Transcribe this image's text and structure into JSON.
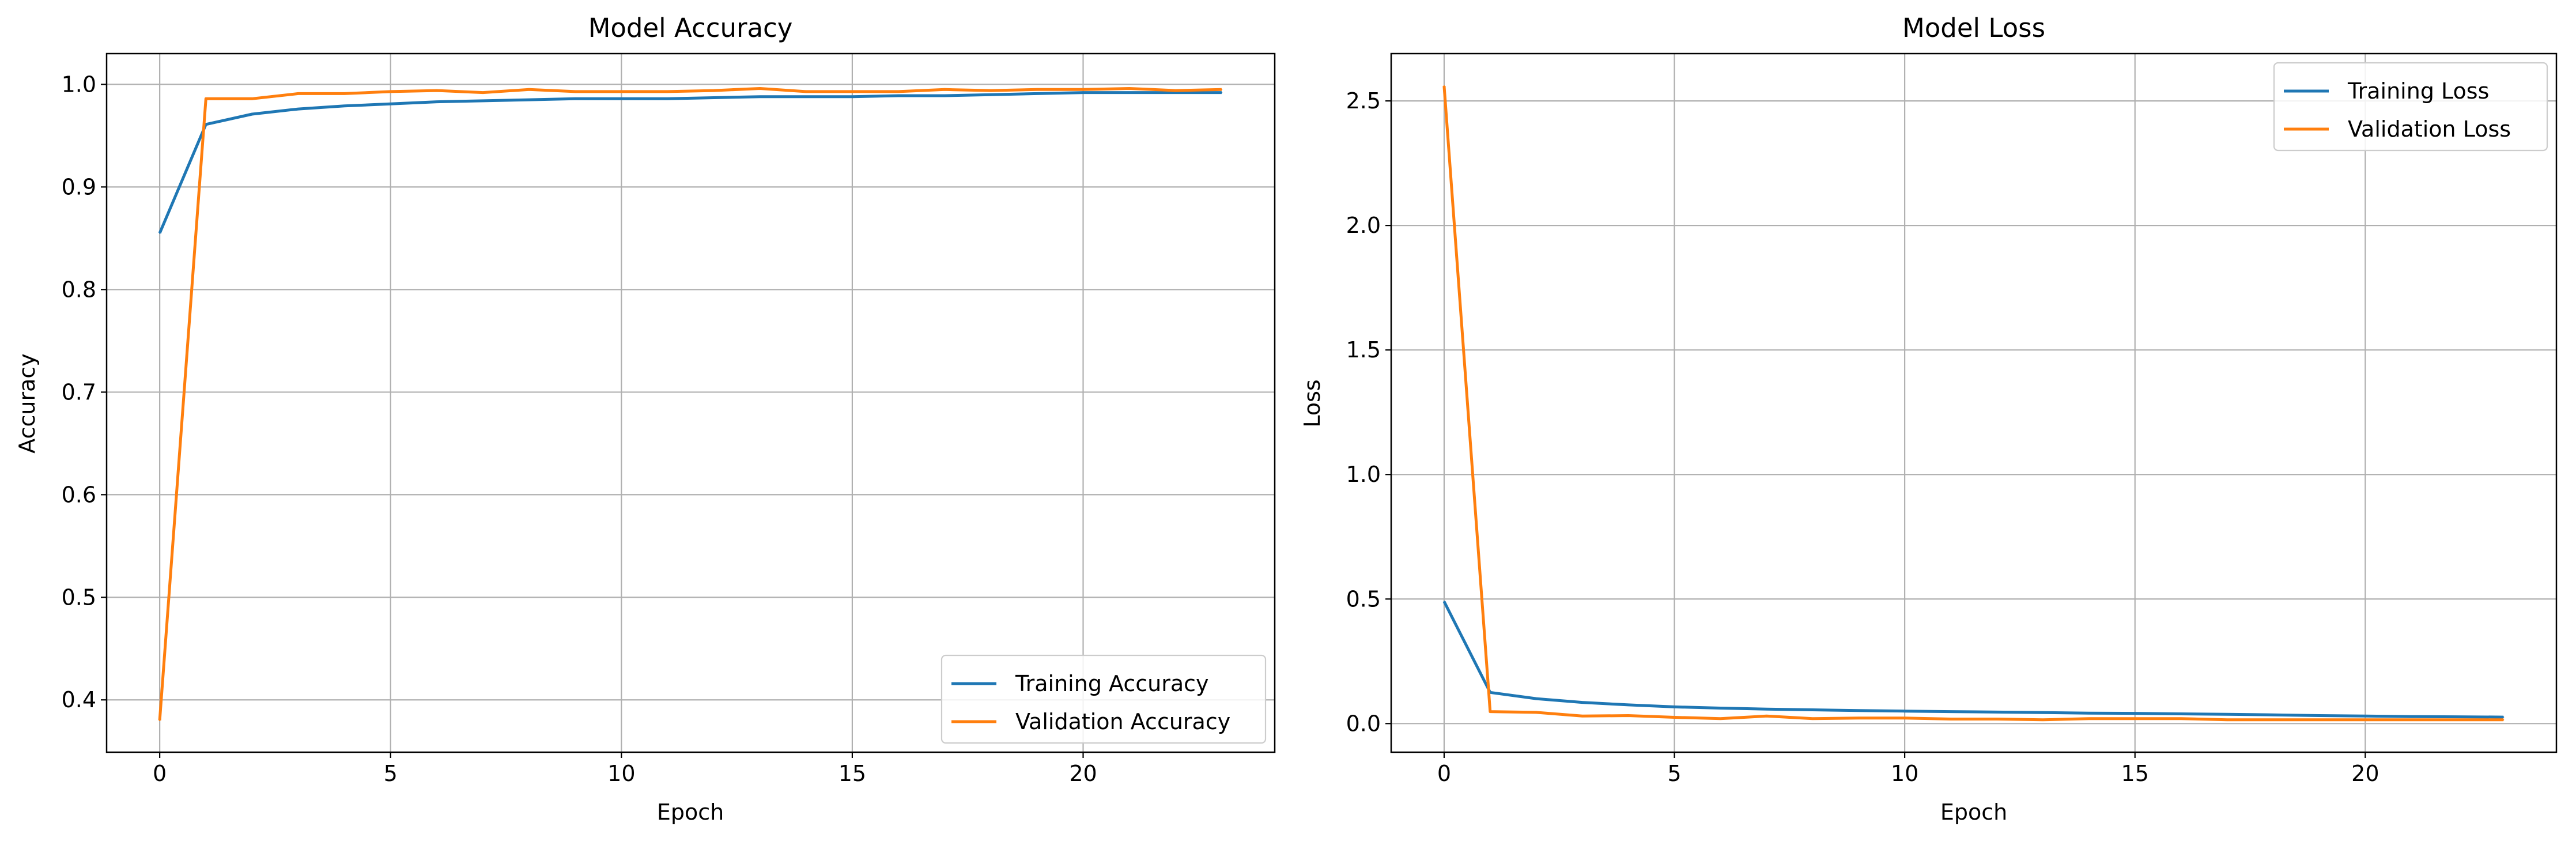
{
  "colors": {
    "training": "#1f77b4",
    "validation": "#ff7f0e",
    "grid": "#b0b0b0",
    "axes": "#000000"
  },
  "chart_data": [
    {
      "type": "line",
      "title": "Model Accuracy",
      "xlabel": "Epoch",
      "ylabel": "Accuracy",
      "xlim": [
        -1.15,
        24.15
      ],
      "ylim": [
        0.349,
        1.03
      ],
      "xticks": [
        0,
        5,
        10,
        15,
        20
      ],
      "xtick_labels": [
        "0",
        "5",
        "10",
        "15",
        "20"
      ],
      "yticks": [
        0.4,
        0.5,
        0.6,
        0.7,
        0.8,
        0.9,
        1.0
      ],
      "ytick_labels": [
        "0.4",
        "0.5",
        "0.6",
        "0.7",
        "0.8",
        "0.9",
        "1.0"
      ],
      "grid": true,
      "legend_position": "lower-right",
      "x": [
        0,
        1,
        2,
        3,
        4,
        5,
        6,
        7,
        8,
        9,
        10,
        11,
        12,
        13,
        14,
        15,
        16,
        17,
        18,
        19,
        20,
        21,
        22,
        23
      ],
      "series": [
        {
          "name": "Training Accuracy",
          "color": "#1f77b4",
          "values": [
            0.855,
            0.961,
            0.971,
            0.976,
            0.979,
            0.981,
            0.983,
            0.984,
            0.985,
            0.986,
            0.986,
            0.986,
            0.987,
            0.988,
            0.988,
            0.988,
            0.989,
            0.989,
            0.99,
            0.991,
            0.992,
            0.992,
            0.992,
            0.992
          ]
        },
        {
          "name": "Validation Accuracy",
          "color": "#ff7f0e",
          "values": [
            0.38,
            0.986,
            0.986,
            0.991,
            0.991,
            0.993,
            0.994,
            0.992,
            0.995,
            0.993,
            0.993,
            0.993,
            0.994,
            0.996,
            0.993,
            0.993,
            0.993,
            0.995,
            0.994,
            0.995,
            0.995,
            0.996,
            0.994,
            0.995
          ]
        }
      ]
    },
    {
      "type": "line",
      "title": "Model Loss",
      "xlabel": "Epoch",
      "ylabel": "Loss",
      "xlim": [
        -1.15,
        24.15
      ],
      "ylim": [
        -0.115,
        2.69
      ],
      "xticks": [
        0,
        5,
        10,
        15,
        20
      ],
      "xtick_labels": [
        "0",
        "5",
        "10",
        "15",
        "20"
      ],
      "yticks": [
        0.0,
        0.5,
        1.0,
        1.5,
        2.0,
        2.5
      ],
      "ytick_labels": [
        "0.0",
        "0.5",
        "1.0",
        "1.5",
        "2.0",
        "2.5"
      ],
      "grid": true,
      "legend_position": "upper-right",
      "x": [
        0,
        1,
        2,
        3,
        4,
        5,
        6,
        7,
        8,
        9,
        10,
        11,
        12,
        13,
        14,
        15,
        16,
        17,
        18,
        19,
        20,
        21,
        22,
        23
      ],
      "series": [
        {
          "name": "Training Loss",
          "color": "#1f77b4",
          "values": [
            0.49,
            0.125,
            0.1,
            0.085,
            0.075,
            0.067,
            0.062,
            0.058,
            0.055,
            0.052,
            0.05,
            0.048,
            0.046,
            0.044,
            0.042,
            0.041,
            0.039,
            0.037,
            0.035,
            0.032,
            0.03,
            0.028,
            0.027,
            0.026
          ]
        },
        {
          "name": "Validation Loss",
          "color": "#ff7f0e",
          "values": [
            2.56,
            0.048,
            0.045,
            0.03,
            0.032,
            0.025,
            0.02,
            0.03,
            0.02,
            0.022,
            0.022,
            0.018,
            0.018,
            0.015,
            0.02,
            0.02,
            0.02,
            0.015,
            0.015,
            0.015,
            0.015,
            0.015,
            0.015,
            0.015
          ]
        }
      ]
    }
  ]
}
